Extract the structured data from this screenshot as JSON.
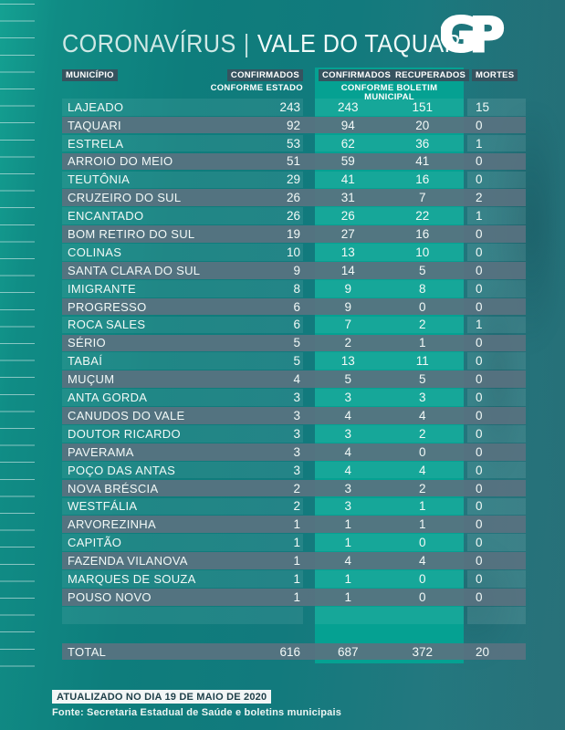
{
  "title": {
    "part1": "CORONAVÍRUS",
    "separator": "|",
    "part2": "VALE DO TAQUARI"
  },
  "logo": {
    "text": "GP"
  },
  "table_headers": {
    "municipio": "MUNICÍPIO",
    "confirmados_estado": "CONFIRMADOS",
    "confirmados_estado_sub": "CONFORME ESTADO",
    "confirmados_municipal": "CONFIRMADOS",
    "recuperados": "RECUPERADOS",
    "mortes": "MORTES",
    "boletim_sub": "CONFORME BOLETIM MUNICIPAL"
  },
  "chart_data": {
    "type": "table",
    "title": "CORONAVÍRUS | VALE DO TAQUARI",
    "columns": [
      "MUNICÍPIO",
      "CONFIRMADOS CONFORME ESTADO",
      "CONFIRMADOS CONFORME BOLETIM MUNICIPAL",
      "RECUPERADOS",
      "MORTES"
    ],
    "rows": [
      [
        "LAJEADO",
        243,
        243,
        151,
        15
      ],
      [
        "TAQUARI",
        92,
        94,
        20,
        0
      ],
      [
        "ESTRELA",
        53,
        62,
        36,
        1
      ],
      [
        "ARROIO DO MEIO",
        51,
        59,
        41,
        0
      ],
      [
        "TEUTÔNIA",
        29,
        41,
        16,
        0
      ],
      [
        "CRUZEIRO DO SUL",
        26,
        31,
        7,
        2
      ],
      [
        "ENCANTADO",
        26,
        26,
        22,
        1
      ],
      [
        "BOM RETIRO DO SUL",
        19,
        27,
        16,
        0
      ],
      [
        "COLINAS",
        10,
        13,
        10,
        0
      ],
      [
        "SANTA CLARA DO SUL",
        9,
        14,
        5,
        0
      ],
      [
        "IMIGRANTE",
        8,
        9,
        8,
        0
      ],
      [
        "PROGRESSO",
        6,
        9,
        0,
        0
      ],
      [
        "ROCA SALES",
        6,
        7,
        2,
        1
      ],
      [
        "SÉRIO",
        5,
        2,
        1,
        0
      ],
      [
        "TABAÍ",
        5,
        13,
        11,
        0
      ],
      [
        "MUÇUM",
        4,
        5,
        5,
        0
      ],
      [
        "ANTA GORDA",
        3,
        3,
        3,
        0
      ],
      [
        "CANUDOS DO VALE",
        3,
        4,
        4,
        0
      ],
      [
        "DOUTOR RICARDO",
        3,
        3,
        2,
        0
      ],
      [
        "PAVERAMA",
        3,
        4,
        0,
        0
      ],
      [
        "POÇO DAS ANTAS",
        3,
        4,
        4,
        0
      ],
      [
        "NOVA BRÉSCIA",
        2,
        3,
        2,
        0
      ],
      [
        "WESTFÁLIA",
        2,
        3,
        1,
        0
      ],
      [
        "ARVOREZINHA",
        1,
        1,
        1,
        0
      ],
      [
        "CAPITÃO",
        1,
        1,
        0,
        0
      ],
      [
        "FAZENDA VILANOVA",
        1,
        4,
        4,
        0
      ],
      [
        "MARQUES DE SOUZA",
        1,
        1,
        0,
        0
      ],
      [
        "POUSO NOVO",
        1,
        1,
        0,
        0
      ]
    ],
    "total": [
      "TOTAL",
      616,
      687,
      372,
      20
    ]
  },
  "footer": {
    "updated": "ATUALIZADO NO DIA 19 DE MAIO DE 2020",
    "source": "Fonte: Secretaria Estadual de Saúde e boletins municipais"
  },
  "colors": {
    "accent_green": "#05a192",
    "row_gray": "#5a7380",
    "chip_dark": "#36535f",
    "bg_left": "#14a192",
    "bg_right": "#2e7b83",
    "footer_chip_bg": "#f2f6f6",
    "footer_chip_text": "#1f4049"
  }
}
